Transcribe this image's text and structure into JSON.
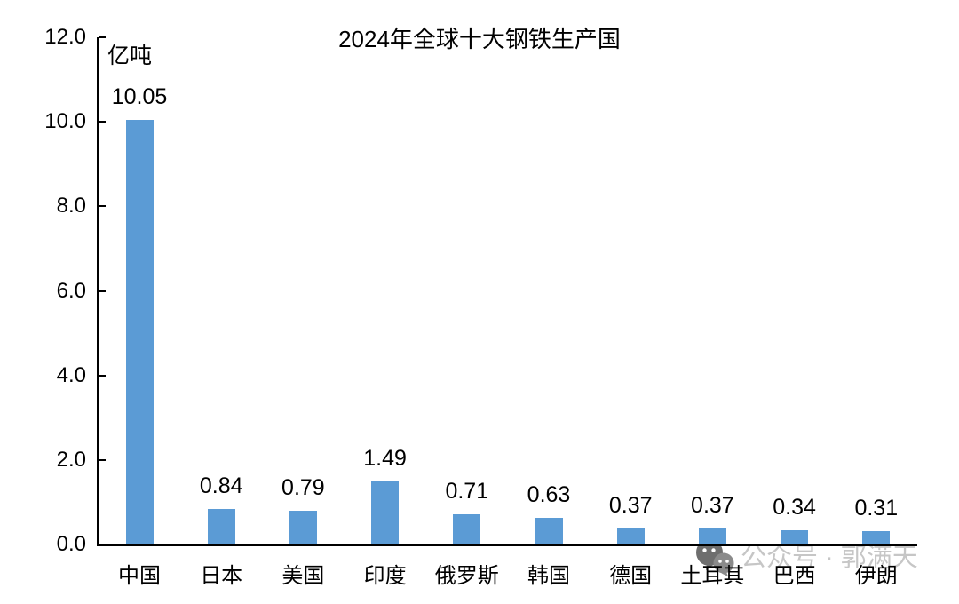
{
  "chart_data": {
    "type": "bar",
    "title": "2024年全球十大钢铁生产国",
    "ylabel": "亿吨",
    "xlabel": "",
    "categories": [
      "中国",
      "日本",
      "美国",
      "印度",
      "俄罗斯",
      "韩国",
      "德国",
      "土耳其",
      "巴西",
      "伊朗"
    ],
    "values": [
      10.05,
      0.84,
      0.79,
      1.49,
      0.71,
      0.63,
      0.37,
      0.37,
      0.34,
      0.31
    ],
    "value_labels": [
      "10.05",
      "0.84",
      "0.79",
      "1.49",
      "0.71",
      "0.63",
      "0.37",
      "0.37",
      "0.34",
      "0.31"
    ],
    "ylim": [
      0,
      12
    ],
    "ytick_values": [
      0,
      2,
      4,
      6,
      8,
      10,
      12
    ],
    "ytick_labels": [
      "0.0",
      "2.0",
      "4.0",
      "6.0",
      "8.0",
      "10.0",
      "12.0"
    ],
    "bar_color": "#5B9BD5",
    "axis_color": "#000000",
    "grid": false,
    "legend": "none"
  },
  "watermark": {
    "icon": "wechat-icon",
    "text": "公众号 · 郭满天",
    "color": "#c6c6c6",
    "icon_color": "#6e6e6e"
  }
}
